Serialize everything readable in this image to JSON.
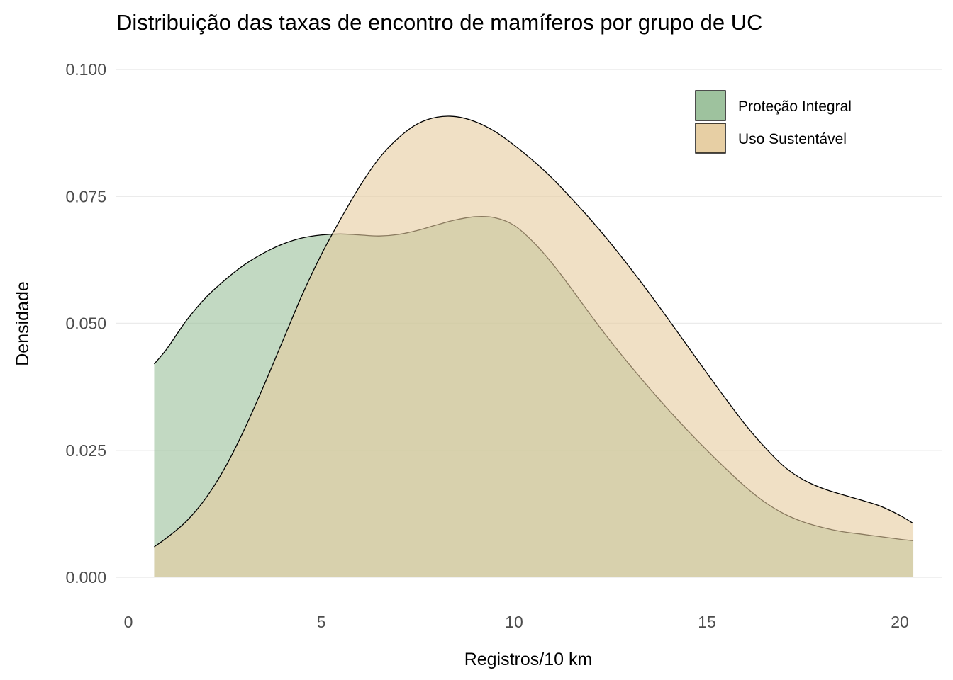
{
  "chart_data": {
    "type": "area",
    "title": "Distribuição das taxas de encontro de mamíferos por grupo de UC",
    "xlabel": "Registros/10 km",
    "ylabel": "Densidade",
    "xlim": [
      -0.3,
      20.4
    ],
    "ylim": [
      0,
      0.1
    ],
    "x_ticks": [
      0,
      5,
      10,
      15,
      20
    ],
    "x_tick_labels": [
      "0",
      "5",
      "10",
      "15",
      "20"
    ],
    "y_ticks": [
      0,
      0.025,
      0.05,
      0.075,
      0.1
    ],
    "y_tick_labels": [
      "0.000",
      "0.025",
      "0.050",
      "0.075",
      "0.100"
    ],
    "grid": true,
    "legend_position": "top-right",
    "series": [
      {
        "name": "Proteção Integral",
        "color": "#99BF99",
        "points": [
          [
            0.67,
            0.042
          ],
          [
            1.0,
            0.045
          ],
          [
            1.5,
            0.0505
          ],
          [
            2.0,
            0.055
          ],
          [
            2.5,
            0.0585
          ],
          [
            3.0,
            0.0615
          ],
          [
            3.5,
            0.0638
          ],
          [
            4.0,
            0.0656
          ],
          [
            4.5,
            0.0668
          ],
          [
            5.0,
            0.0674
          ],
          [
            5.5,
            0.0676
          ],
          [
            6.0,
            0.0674
          ],
          [
            6.5,
            0.0672
          ],
          [
            7.0,
            0.0675
          ],
          [
            7.5,
            0.0683
          ],
          [
            8.0,
            0.0694
          ],
          [
            8.5,
            0.0704
          ],
          [
            9.0,
            0.071
          ],
          [
            9.5,
            0.0708
          ],
          [
            10.0,
            0.0693
          ],
          [
            10.5,
            0.066
          ],
          [
            11.0,
            0.0617
          ],
          [
            11.5,
            0.0567
          ],
          [
            12.0,
            0.0515
          ],
          [
            12.5,
            0.0465
          ],
          [
            13.0,
            0.0418
          ],
          [
            13.5,
            0.0373
          ],
          [
            14.0,
            0.033
          ],
          [
            14.5,
            0.0289
          ],
          [
            15.0,
            0.025
          ],
          [
            15.5,
            0.0213
          ],
          [
            16.0,
            0.0178
          ],
          [
            16.5,
            0.0148
          ],
          [
            17.0,
            0.0125
          ],
          [
            17.5,
            0.0109
          ],
          [
            18.0,
            0.0098
          ],
          [
            18.5,
            0.009
          ],
          [
            19.0,
            0.0085
          ],
          [
            19.5,
            0.008
          ],
          [
            20.0,
            0.0075
          ],
          [
            20.35,
            0.0072
          ]
        ]
      },
      {
        "name": "Uso Sustentável",
        "color": "#E6CC9F",
        "points": [
          [
            0.67,
            0.006
          ],
          [
            1.0,
            0.0078
          ],
          [
            1.5,
            0.011
          ],
          [
            2.0,
            0.0155
          ],
          [
            2.5,
            0.0215
          ],
          [
            3.0,
            0.029
          ],
          [
            3.5,
            0.0375
          ],
          [
            4.0,
            0.0465
          ],
          [
            4.5,
            0.0555
          ],
          [
            5.0,
            0.0635
          ],
          [
            5.5,
            0.0705
          ],
          [
            6.0,
            0.077
          ],
          [
            6.5,
            0.0825
          ],
          [
            7.0,
            0.0865
          ],
          [
            7.5,
            0.0893
          ],
          [
            8.0,
            0.0906
          ],
          [
            8.5,
            0.0907
          ],
          [
            9.0,
            0.0897
          ],
          [
            9.5,
            0.0878
          ],
          [
            10.0,
            0.0851
          ],
          [
            10.5,
            0.082
          ],
          [
            11.0,
            0.0785
          ],
          [
            11.5,
            0.0745
          ],
          [
            12.0,
            0.0703
          ],
          [
            12.5,
            0.0658
          ],
          [
            13.0,
            0.061
          ],
          [
            13.5,
            0.056
          ],
          [
            14.0,
            0.0508
          ],
          [
            14.5,
            0.0455
          ],
          [
            15.0,
            0.0402
          ],
          [
            15.5,
            0.035
          ],
          [
            16.0,
            0.03
          ],
          [
            16.5,
            0.0256
          ],
          [
            17.0,
            0.0218
          ],
          [
            17.5,
            0.0192
          ],
          [
            18.0,
            0.0175
          ],
          [
            18.5,
            0.0163
          ],
          [
            19.0,
            0.0152
          ],
          [
            19.5,
            0.014
          ],
          [
            20.0,
            0.0122
          ],
          [
            20.35,
            0.0106
          ]
        ]
      }
    ]
  }
}
